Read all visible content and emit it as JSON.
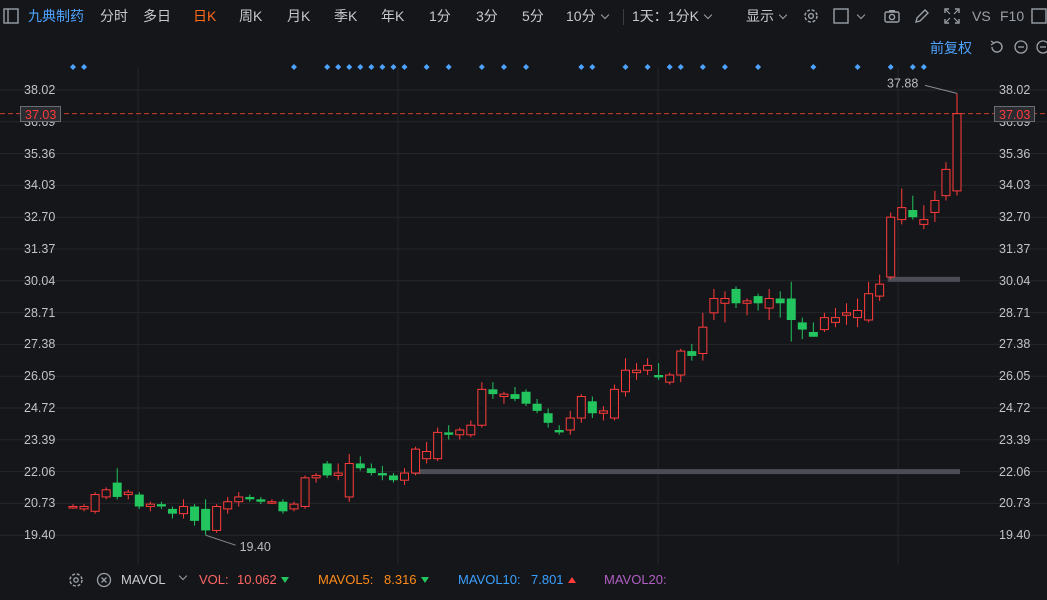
{
  "toolbar": {
    "stock_name": "九典制药",
    "periods": [
      "分时",
      "多日",
      "日K",
      "周K",
      "月K",
      "季K",
      "年K",
      "1分",
      "3分",
      "5分",
      "10分"
    ],
    "active_period": "日K",
    "interval_select": "1天：1分K",
    "display_select": "显示",
    "vs_label": "VS",
    "f10_label": "F10"
  },
  "adjust_label": "前复权",
  "current_price": "37.03",
  "chart_data": {
    "type": "candlestick",
    "y_ticks": [
      "38.02",
      "36.69",
      "35.36",
      "34.03",
      "32.70",
      "31.37",
      "30.04",
      "28.71",
      "27.38",
      "26.05",
      "24.72",
      "23.39",
      "22.06",
      "20.73",
      "19.40"
    ],
    "ylim": [
      18.6,
      38.5
    ],
    "high_label": "37.88",
    "low_label": "19.40",
    "current_price": 37.03,
    "level_lines": [
      {
        "from_index": 31,
        "to_index": 80,
        "value": 22.06
      },
      {
        "from_index": 74,
        "to_index": 80,
        "value": 30.1
      }
    ],
    "marker_indices": [
      0,
      1,
      20,
      23,
      24,
      25,
      26,
      27,
      28,
      29,
      30,
      32,
      34,
      37,
      39,
      41,
      46,
      47,
      50,
      52,
      54,
      55,
      57,
      59,
      62,
      67,
      71,
      74,
      76,
      77
    ],
    "candles": [
      {
        "o": 20.6,
        "h": 20.7,
        "l": 20.5,
        "c": 20.6
      },
      {
        "o": 20.5,
        "h": 20.7,
        "l": 20.4,
        "c": 20.6
      },
      {
        "o": 20.4,
        "h": 21.2,
        "l": 20.3,
        "c": 21.1
      },
      {
        "o": 21.0,
        "h": 21.4,
        "l": 20.9,
        "c": 21.3
      },
      {
        "o": 21.6,
        "h": 22.2,
        "l": 20.9,
        "c": 21.0
      },
      {
        "o": 21.1,
        "h": 21.3,
        "l": 20.9,
        "c": 21.2
      },
      {
        "o": 21.1,
        "h": 21.2,
        "l": 20.5,
        "c": 20.6
      },
      {
        "o": 20.6,
        "h": 20.8,
        "l": 20.4,
        "c": 20.7
      },
      {
        "o": 20.7,
        "h": 20.8,
        "l": 20.5,
        "c": 20.6
      },
      {
        "o": 20.5,
        "h": 20.6,
        "l": 20.1,
        "c": 20.3
      },
      {
        "o": 20.3,
        "h": 20.9,
        "l": 20.1,
        "c": 20.6
      },
      {
        "o": 20.6,
        "h": 20.7,
        "l": 19.8,
        "c": 20.0
      },
      {
        "o": 20.5,
        "h": 20.9,
        "l": 19.4,
        "c": 19.6
      },
      {
        "o": 19.6,
        "h": 20.7,
        "l": 19.5,
        "c": 20.6
      },
      {
        "o": 20.5,
        "h": 21.0,
        "l": 20.3,
        "c": 20.8
      },
      {
        "o": 20.8,
        "h": 21.2,
        "l": 20.6,
        "c": 21.0
      },
      {
        "o": 21.0,
        "h": 21.1,
        "l": 20.8,
        "c": 20.9
      },
      {
        "o": 20.9,
        "h": 21.0,
        "l": 20.7,
        "c": 20.8
      },
      {
        "o": 20.8,
        "h": 20.9,
        "l": 20.7,
        "c": 20.8
      },
      {
        "o": 20.8,
        "h": 20.9,
        "l": 20.3,
        "c": 20.4
      },
      {
        "o": 20.5,
        "h": 20.8,
        "l": 20.4,
        "c": 20.7
      },
      {
        "o": 20.6,
        "h": 21.9,
        "l": 20.5,
        "c": 21.8
      },
      {
        "o": 21.8,
        "h": 22.0,
        "l": 21.6,
        "c": 21.9
      },
      {
        "o": 22.4,
        "h": 22.5,
        "l": 21.8,
        "c": 21.9
      },
      {
        "o": 21.9,
        "h": 22.4,
        "l": 21.7,
        "c": 22.0
      },
      {
        "o": 21.0,
        "h": 22.8,
        "l": 20.8,
        "c": 22.4
      },
      {
        "o": 22.4,
        "h": 22.7,
        "l": 22.1,
        "c": 22.2
      },
      {
        "o": 22.2,
        "h": 22.4,
        "l": 21.9,
        "c": 22.0
      },
      {
        "o": 22.0,
        "h": 22.3,
        "l": 21.7,
        "c": 21.9
      },
      {
        "o": 21.9,
        "h": 22.0,
        "l": 21.6,
        "c": 21.7
      },
      {
        "o": 21.7,
        "h": 22.2,
        "l": 21.5,
        "c": 22.0
      },
      {
        "o": 22.0,
        "h": 23.1,
        "l": 21.9,
        "c": 23.0
      },
      {
        "o": 22.6,
        "h": 23.3,
        "l": 22.4,
        "c": 22.9
      },
      {
        "o": 22.6,
        "h": 23.9,
        "l": 22.5,
        "c": 23.7
      },
      {
        "o": 23.7,
        "h": 24.0,
        "l": 23.4,
        "c": 23.6
      },
      {
        "o": 23.6,
        "h": 23.9,
        "l": 23.4,
        "c": 23.8
      },
      {
        "o": 23.6,
        "h": 24.2,
        "l": 23.5,
        "c": 24.0
      },
      {
        "o": 24.0,
        "h": 25.8,
        "l": 23.9,
        "c": 25.5
      },
      {
        "o": 25.5,
        "h": 25.8,
        "l": 25.1,
        "c": 25.3
      },
      {
        "o": 25.2,
        "h": 25.4,
        "l": 24.9,
        "c": 25.3
      },
      {
        "o": 25.3,
        "h": 25.6,
        "l": 25.0,
        "c": 25.1
      },
      {
        "o": 25.4,
        "h": 25.5,
        "l": 24.8,
        "c": 24.9
      },
      {
        "o": 24.9,
        "h": 25.1,
        "l": 24.5,
        "c": 24.6
      },
      {
        "o": 24.5,
        "h": 24.7,
        "l": 23.9,
        "c": 24.1
      },
      {
        "o": 23.8,
        "h": 24.0,
        "l": 23.6,
        "c": 23.7
      },
      {
        "o": 23.8,
        "h": 24.6,
        "l": 23.6,
        "c": 24.3
      },
      {
        "o": 24.3,
        "h": 25.3,
        "l": 24.1,
        "c": 25.2
      },
      {
        "o": 25.0,
        "h": 25.2,
        "l": 24.3,
        "c": 24.5
      },
      {
        "o": 24.5,
        "h": 24.8,
        "l": 24.2,
        "c": 24.6
      },
      {
        "o": 24.3,
        "h": 25.7,
        "l": 24.2,
        "c": 25.5
      },
      {
        "o": 25.4,
        "h": 26.8,
        "l": 25.2,
        "c": 26.3
      },
      {
        "o": 26.2,
        "h": 26.6,
        "l": 25.9,
        "c": 26.3
      },
      {
        "o": 26.3,
        "h": 26.8,
        "l": 26.1,
        "c": 26.5
      },
      {
        "o": 26.1,
        "h": 26.6,
        "l": 25.9,
        "c": 26.0
      },
      {
        "o": 25.8,
        "h": 26.2,
        "l": 25.7,
        "c": 26.1
      },
      {
        "o": 26.1,
        "h": 27.2,
        "l": 25.8,
        "c": 27.1
      },
      {
        "o": 27.1,
        "h": 27.4,
        "l": 26.7,
        "c": 26.9
      },
      {
        "o": 27.0,
        "h": 28.7,
        "l": 26.7,
        "c": 28.1
      },
      {
        "o": 28.7,
        "h": 29.7,
        "l": 28.4,
        "c": 29.3
      },
      {
        "o": 29.1,
        "h": 29.6,
        "l": 28.3,
        "c": 29.3
      },
      {
        "o": 29.7,
        "h": 29.8,
        "l": 28.9,
        "c": 29.1
      },
      {
        "o": 29.1,
        "h": 29.3,
        "l": 28.6,
        "c": 29.2
      },
      {
        "o": 29.4,
        "h": 29.5,
        "l": 28.8,
        "c": 29.1
      },
      {
        "o": 28.9,
        "h": 29.7,
        "l": 28.4,
        "c": 29.3
      },
      {
        "o": 29.3,
        "h": 29.6,
        "l": 28.5,
        "c": 29.1
      },
      {
        "o": 29.3,
        "h": 30.0,
        "l": 27.5,
        "c": 28.4
      },
      {
        "o": 28.3,
        "h": 28.5,
        "l": 27.6,
        "c": 28.0
      },
      {
        "o": 27.9,
        "h": 28.3,
        "l": 27.7,
        "c": 27.7
      },
      {
        "o": 28.0,
        "h": 28.7,
        "l": 27.9,
        "c": 28.5
      },
      {
        "o": 28.3,
        "h": 28.9,
        "l": 28.1,
        "c": 28.5
      },
      {
        "o": 28.6,
        "h": 29.1,
        "l": 28.2,
        "c": 28.7
      },
      {
        "o": 28.5,
        "h": 29.3,
        "l": 28.1,
        "c": 28.8
      },
      {
        "o": 28.4,
        "h": 30.0,
        "l": 28.3,
        "c": 29.5
      },
      {
        "o": 29.4,
        "h": 30.3,
        "l": 29.2,
        "c": 29.9
      },
      {
        "o": 30.2,
        "h": 32.9,
        "l": 30.1,
        "c": 32.7
      },
      {
        "o": 32.6,
        "h": 33.9,
        "l": 32.4,
        "c": 33.1
      },
      {
        "o": 33.0,
        "h": 33.6,
        "l": 32.6,
        "c": 32.7
      },
      {
        "o": 32.4,
        "h": 33.2,
        "l": 32.2,
        "c": 32.6
      },
      {
        "o": 32.9,
        "h": 33.8,
        "l": 32.5,
        "c": 33.4
      },
      {
        "o": 33.6,
        "h": 35.0,
        "l": 33.4,
        "c": 34.7
      },
      {
        "o": 33.8,
        "h": 37.88,
        "l": 33.6,
        "c": 37.03
      }
    ]
  },
  "indicators": {
    "name": "MAVOL",
    "vol_label": "VOL:",
    "vol_value": "10.062",
    "mavol5_label": "MAVOL5:",
    "mavol5_value": "8.316",
    "mavol10_label": "MAVOL10:",
    "mavol10_value": "7.801",
    "mavol20_label": "MAVOL20:"
  },
  "colors": {
    "up": "#ff3b3b",
    "down": "#22c55e",
    "marker": "#4da3ff",
    "level": "#4a4d55",
    "accent": "#ff6a1a",
    "mavol5": "#ff8c1a",
    "mavol10": "#3aa0ff",
    "mavol20": "#b05ec4"
  }
}
